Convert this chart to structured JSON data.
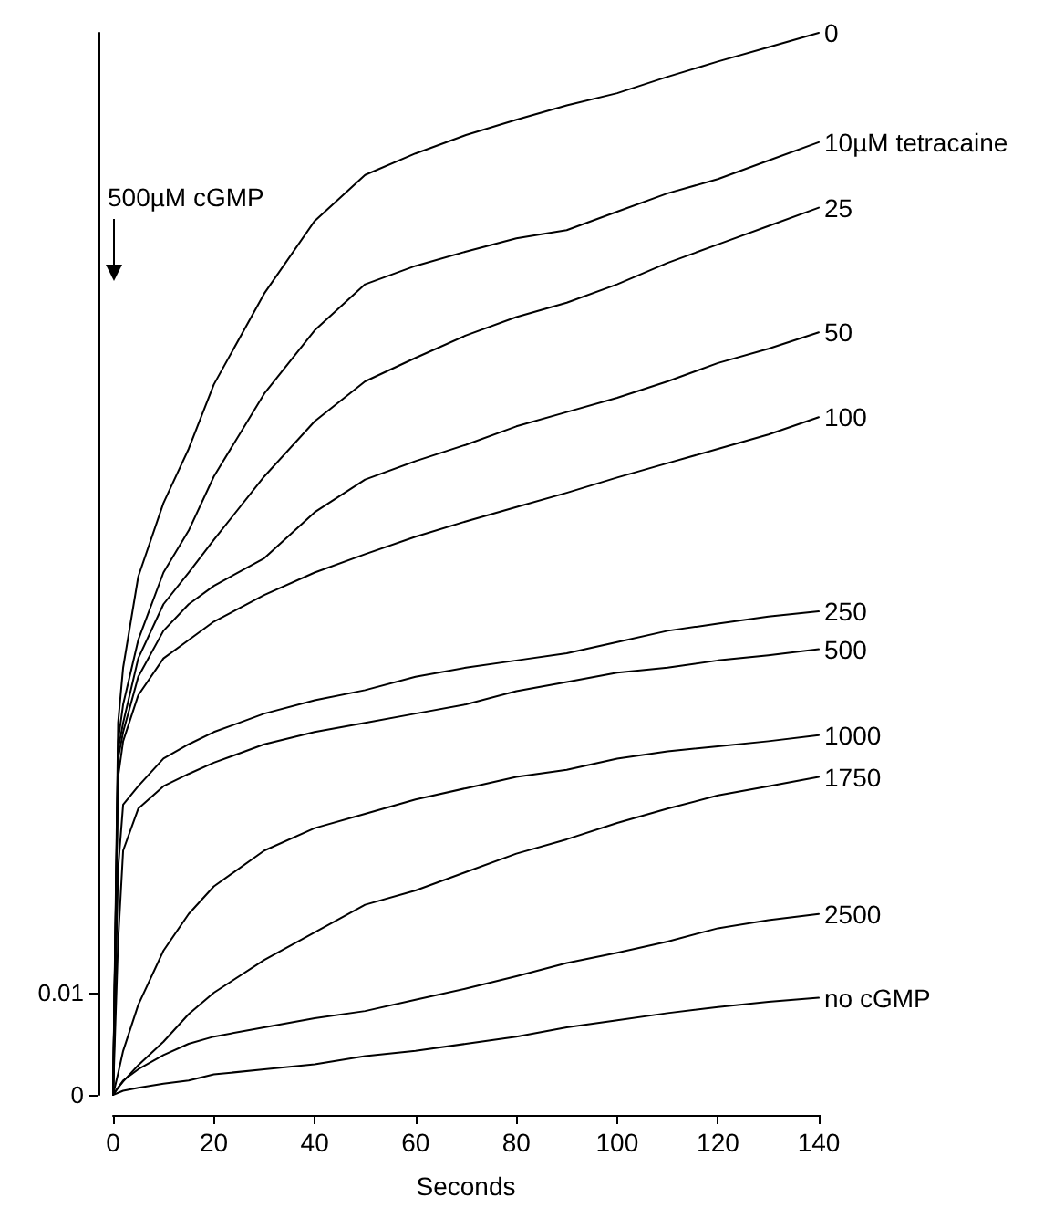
{
  "chart_data": {
    "type": "line",
    "xlabel": "Seconds",
    "x": [
      0,
      1,
      2,
      5,
      10,
      15,
      20,
      30,
      40,
      50,
      60,
      70,
      80,
      90,
      100,
      110,
      120,
      130,
      140
    ],
    "xlim": [
      0,
      140
    ],
    "xticks": [
      0,
      20,
      40,
      60,
      80,
      100,
      120,
      140
    ],
    "ylim": [
      0,
      0.1039
    ],
    "yticks": [
      0,
      0.01
    ],
    "grid": false,
    "legend": false,
    "marker": "none",
    "line_style": "solid",
    "annotations": [
      "500µM cGMP"
    ],
    "series": [
      {
        "name": "0",
        "color": "#000000",
        "values": [
          0,
          0.0364,
          0.0418,
          0.0507,
          0.0579,
          0.0632,
          0.0695,
          0.0784,
          0.0855,
          0.09,
          0.0921,
          0.0939,
          0.0954,
          0.0968,
          0.098,
          0.0996,
          0.1011,
          0.1025,
          0.1039
        ]
      },
      {
        "name": "10µM tetracaine",
        "color": "#000000",
        "values": [
          0,
          0.0346,
          0.0382,
          0.0445,
          0.0511,
          0.0552,
          0.0605,
          0.0686,
          0.0748,
          0.0793,
          0.0811,
          0.0825,
          0.0838,
          0.0846,
          0.0864,
          0.0882,
          0.0896,
          0.0914,
          0.0932
        ]
      },
      {
        "name": "25",
        "color": "#000000",
        "values": [
          0,
          0.0338,
          0.0364,
          0.0427,
          0.048,
          0.0511,
          0.0543,
          0.0605,
          0.0659,
          0.0698,
          0.0721,
          0.0743,
          0.0761,
          0.0775,
          0.0793,
          0.0814,
          0.0832,
          0.085,
          0.0868
        ]
      },
      {
        "name": "50",
        "color": "#000000",
        "values": [
          0,
          0.0329,
          0.0355,
          0.0409,
          0.0454,
          0.048,
          0.0498,
          0.0525,
          0.057,
          0.0602,
          0.062,
          0.0636,
          0.0654,
          0.0668,
          0.0682,
          0.0698,
          0.0716,
          0.073,
          0.0746
        ]
      },
      {
        "name": "100",
        "color": "#000000",
        "values": [
          0,
          0.0311,
          0.0346,
          0.0391,
          0.0427,
          0.0445,
          0.0463,
          0.0489,
          0.0511,
          0.0529,
          0.0546,
          0.0561,
          0.0575,
          0.0589,
          0.0604,
          0.0618,
          0.0632,
          0.0646,
          0.0663
        ]
      },
      {
        "name": "250",
        "color": "#000000",
        "values": [
          0,
          0.0221,
          0.0284,
          0.0302,
          0.0329,
          0.0343,
          0.0355,
          0.0373,
          0.0386,
          0.0396,
          0.0409,
          0.0418,
          0.0425,
          0.0432,
          0.0443,
          0.0454,
          0.0461,
          0.0468,
          0.0473
        ]
      },
      {
        "name": "500",
        "color": "#000000",
        "values": [
          0,
          0.015,
          0.0239,
          0.028,
          0.0302,
          0.0314,
          0.0325,
          0.0343,
          0.0355,
          0.0364,
          0.0373,
          0.0382,
          0.0395,
          0.0404,
          0.0413,
          0.0418,
          0.0425,
          0.043,
          0.0436
        ]
      },
      {
        "name": "1000",
        "color": "#000000",
        "values": [
          0,
          0.0021,
          0.0043,
          0.0088,
          0.0141,
          0.0177,
          0.0204,
          0.0239,
          0.0261,
          0.0275,
          0.0289,
          0.03,
          0.0311,
          0.0318,
          0.0329,
          0.0336,
          0.0341,
          0.0346,
          0.0352
        ]
      },
      {
        "name": "1750",
        "color": "#000000",
        "values": [
          0,
          0.0007,
          0.0013,
          0.0029,
          0.0052,
          0.0079,
          0.01,
          0.0132,
          0.0159,
          0.0186,
          0.02,
          0.0218,
          0.0236,
          0.025,
          0.0266,
          0.028,
          0.0293,
          0.0302,
          0.0311
        ]
      },
      {
        "name": "2500",
        "color": "#000000",
        "values": [
          0,
          0.0007,
          0.0014,
          0.0025,
          0.0039,
          0.005,
          0.0057,
          0.0066,
          0.0075,
          0.0082,
          0.0093,
          0.0104,
          0.0116,
          0.0129,
          0.0139,
          0.015,
          0.0163,
          0.0171,
          0.0177
        ]
      },
      {
        "name": "no cGMP",
        "color": "#000000",
        "values": [
          0,
          0.0002,
          0.0004,
          0.0007,
          0.0011,
          0.0014,
          0.002,
          0.0025,
          0.003,
          0.0038,
          0.0043,
          0.005,
          0.0057,
          0.0066,
          0.0073,
          0.008,
          0.0086,
          0.0091,
          0.0095
        ]
      }
    ]
  }
}
